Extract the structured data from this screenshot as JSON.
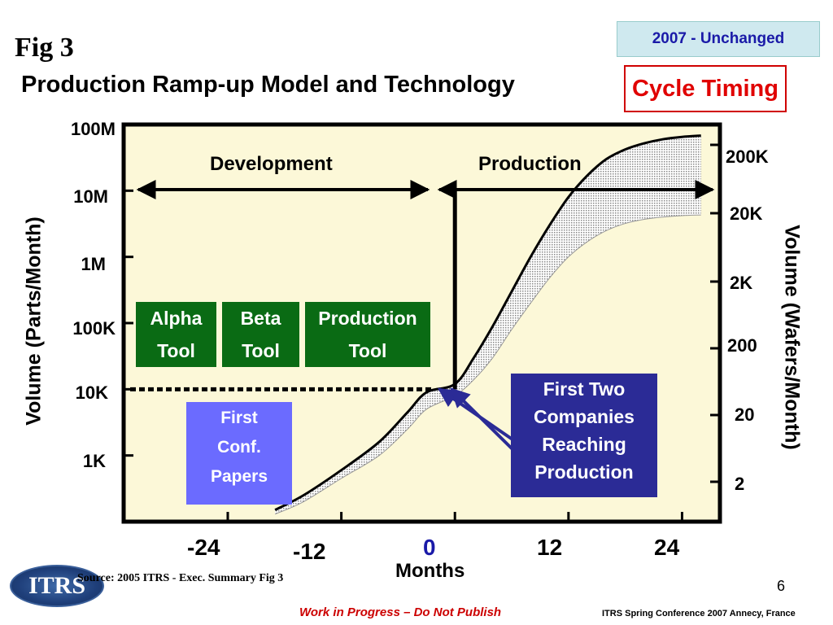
{
  "header": {
    "fig_label": "Fig 3",
    "badge": "2007 - Unchanged",
    "title_main": "Production Ramp-up Model and Technology",
    "title_boxed": "Cycle Timing"
  },
  "chart_data": {
    "type": "line",
    "xlabel": "Months",
    "ylabel_left": "Volume (Parts/Month)",
    "ylabel_right": "Volume (Wafers/Month)",
    "x_ticks": [
      "-24",
      "-12",
      "0",
      "12",
      "24"
    ],
    "x_tick_values": [
      -24,
      -12,
      0,
      12,
      24
    ],
    "y_left_ticks": [
      "100M",
      "10M",
      "1M",
      "100K",
      "10K",
      "1K"
    ],
    "y_left_tick_values": [
      100000000,
      10000000,
      1000000,
      100000,
      10000,
      1000
    ],
    "y_right_ticks": [
      "200K",
      "20K",
      "2K",
      "200",
      "20",
      "2"
    ],
    "y_right_tick_values": [
      200000,
      20000,
      2000,
      200,
      20,
      2
    ],
    "y_scale": "log",
    "xlim": [
      -35,
      28
    ],
    "ylim_left": [
      100,
      100000000
    ],
    "grid": false,
    "background": "#fcf8d8",
    "band_color": "#bbbbbb",
    "series": [
      {
        "values": [
          [
            -19,
            150
          ],
          [
            -16,
            250
          ],
          [
            -12,
            600
          ],
          [
            -8,
            1600
          ],
          [
            -5,
            4500
          ],
          [
            -3,
            9000
          ],
          [
            0,
            12000
          ],
          [
            2,
            30000
          ],
          [
            4,
            90000
          ],
          [
            6,
            300000
          ],
          [
            8,
            1000000
          ],
          [
            10,
            3000000
          ],
          [
            12,
            8000000
          ],
          [
            14,
            17000000
          ],
          [
            16,
            30000000
          ],
          [
            18,
            42000000
          ],
          [
            20,
            52000000
          ],
          [
            22,
            60000000
          ],
          [
            24,
            65000000
          ],
          [
            26,
            68000000
          ]
        ]
      },
      {
        "values": [
          [
            -19,
            130
          ],
          [
            -16,
            200
          ],
          [
            -12,
            450
          ],
          [
            -8,
            1000
          ],
          [
            -5,
            2500
          ],
          [
            -3,
            5000
          ],
          [
            0,
            8000
          ],
          [
            2,
            14000
          ],
          [
            4,
            30000
          ],
          [
            6,
            80000
          ],
          [
            8,
            200000
          ],
          [
            10,
            480000
          ],
          [
            12,
            1000000
          ],
          [
            14,
            1700000
          ],
          [
            16,
            2500000
          ],
          [
            18,
            3200000
          ],
          [
            20,
            3700000
          ],
          [
            22,
            4000000
          ],
          [
            24,
            4200000
          ],
          [
            26,
            4300000
          ]
        ]
      }
    ],
    "annotations": {
      "development": "Development",
      "production": "Production",
      "alpha_tool": [
        "Alpha",
        "Tool"
      ],
      "beta_tool": [
        "Beta",
        "Tool"
      ],
      "production_tool": [
        "Production",
        "Tool"
      ],
      "first_papers": [
        "First",
        "Conf.",
        "Papers"
      ],
      "first_two": [
        "First Two",
        "Companies",
        "Reaching",
        "Production"
      ],
      "threshold_y": 10000
    }
  },
  "footer": {
    "source": "Source:  2005 ITRS - Exec. Summary Fig 3",
    "page_number": "6",
    "wip": "Work in Progress – Do Not Publish",
    "conference": "ITRS Spring Conference 2007    Annecy, France",
    "logo_text": "ITRS"
  }
}
